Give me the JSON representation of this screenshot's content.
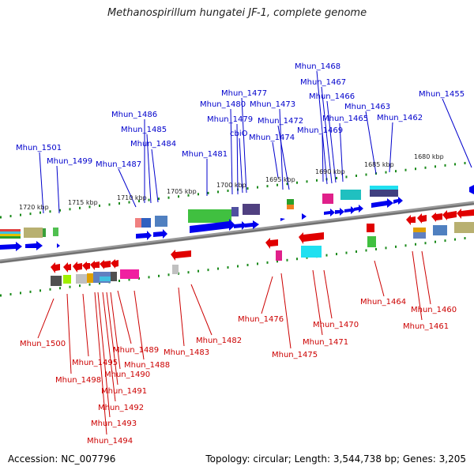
{
  "title": "Methanospirillum hungatei JF-1, complete genome",
  "accession": "Accession: NC_007796",
  "summary": "Topology: circular; Length: 3,544,738 bp; Genes: 3,205",
  "ruler": [
    "1720 kbp",
    "1715 kbp",
    "1710 kbp",
    "1705 kbp",
    "1700 kbp",
    "1695 kbp",
    "1690 kbp",
    "1685 kbp",
    "1680 kbp"
  ],
  "forward_genes": [
    "Mhun_1501",
    "Mhun_1499",
    "Mhun_1487",
    "Mhun_1486",
    "Mhun_1485",
    "Mhun_1484",
    "Mhun_1481",
    "Mhun_1480",
    "Mhun_1479",
    "Mhun_1477",
    "cbiO",
    "Mhun_1474",
    "Mhun_1473",
    "Mhun_1472",
    "Mhun_1469",
    "Mhun_1468",
    "Mhun_1467",
    "Mhun_1466",
    "Mhun_1465",
    "Mhun_1463",
    "Mhun_1462",
    "Mhun_1455"
  ],
  "reverse_genes": [
    "Mhun_1500",
    "Mhun_1498",
    "Mhun_1495",
    "Mhun_1494",
    "Mhun_1493",
    "Mhun_1492",
    "Mhun_1491",
    "Mhun_1490",
    "Mhun_1489",
    "Mhun_1488",
    "Mhun_1483",
    "Mhun_1482",
    "Mhun_1476",
    "Mhun_1475",
    "Mhun_1471",
    "Mhun_1470",
    "Mhun_1464",
    "Mhun_1461",
    "Mhun_1460"
  ]
}
